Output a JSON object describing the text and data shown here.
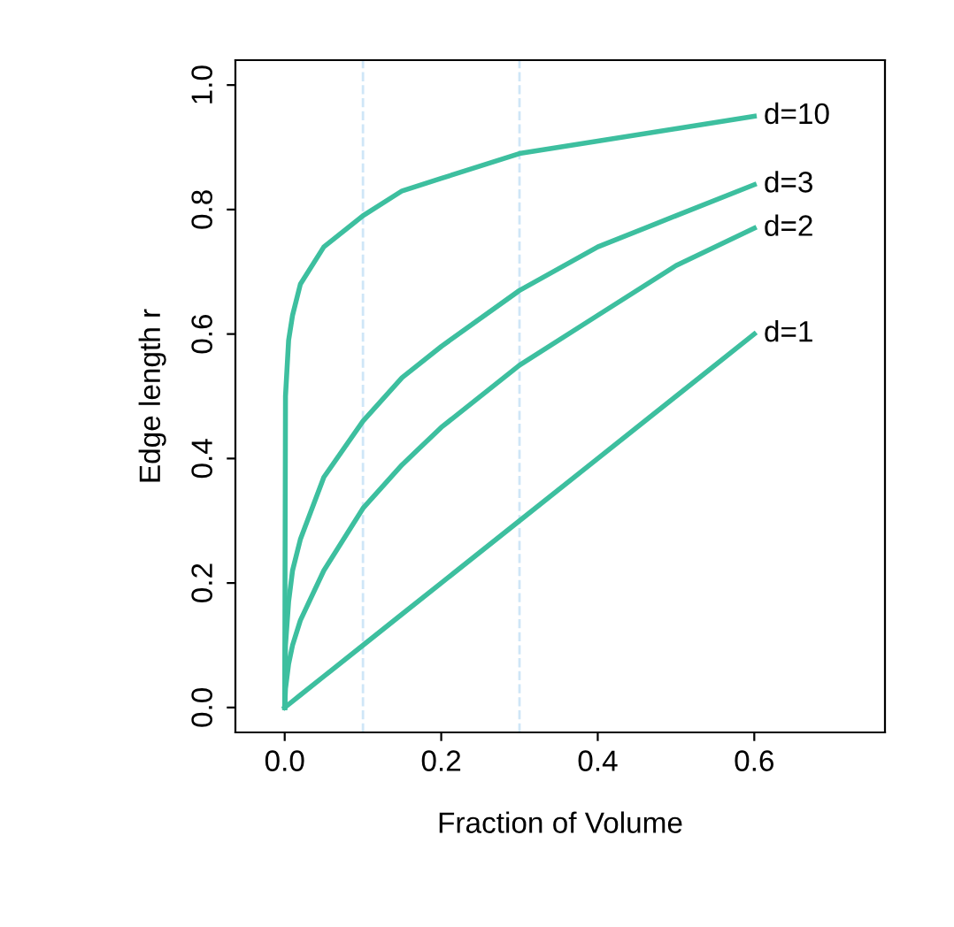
{
  "chart_data": {
    "type": "line",
    "xlabel": "Fraction of Volume",
    "ylabel": "Edge length r",
    "x": [
      0,
      0.001,
      0.005,
      0.01,
      0.02,
      0.05,
      0.1,
      0.15,
      0.2,
      0.3,
      0.4,
      0.5,
      0.6
    ],
    "series": [
      {
        "name": "d=10",
        "color": "#3dbf9f",
        "values": [
          0,
          0.5,
          0.59,
          0.63,
          0.68,
          0.74,
          0.79,
          0.83,
          0.85,
          0.89,
          0.91,
          0.93,
          0.95
        ]
      },
      {
        "name": "d=3",
        "color": "#3dbf9f",
        "values": [
          0,
          0.1,
          0.17,
          0.22,
          0.27,
          0.37,
          0.46,
          0.53,
          0.58,
          0.67,
          0.74,
          0.79,
          0.84
        ]
      },
      {
        "name": "d=2",
        "color": "#3dbf9f",
        "values": [
          0,
          0.03,
          0.07,
          0.1,
          0.14,
          0.22,
          0.32,
          0.39,
          0.45,
          0.55,
          0.63,
          0.71,
          0.77
        ]
      },
      {
        "name": "d=1",
        "color": "#3dbf9f",
        "values": [
          0,
          0.001,
          0.005,
          0.01,
          0.02,
          0.05,
          0.1,
          0.15,
          0.2,
          0.3,
          0.4,
          0.5,
          0.6
        ]
      }
    ],
    "xlim": [
      -0.063,
      0.767
    ],
    "ylim": [
      -0.04,
      1.04
    ],
    "xticks": [
      {
        "value": 0,
        "label": "0.0"
      },
      0.2,
      0.4,
      0.6
    ],
    "yticks": [
      {
        "value": 0,
        "label": "0.0"
      },
      0.2,
      0.4,
      0.6,
      0.8,
      {
        "value": 1,
        "label": "1.0"
      }
    ],
    "ref_lines": [
      {
        "axis": "x",
        "value": 0.1,
        "color": "#cfe6f7",
        "line_style": "dashed"
      },
      {
        "axis": "x",
        "value": 0.3,
        "color": "#cfe6f7",
        "line_style": "dashed"
      }
    ],
    "grid": false,
    "legend": false,
    "marker": "none",
    "line_style": "solid"
  }
}
